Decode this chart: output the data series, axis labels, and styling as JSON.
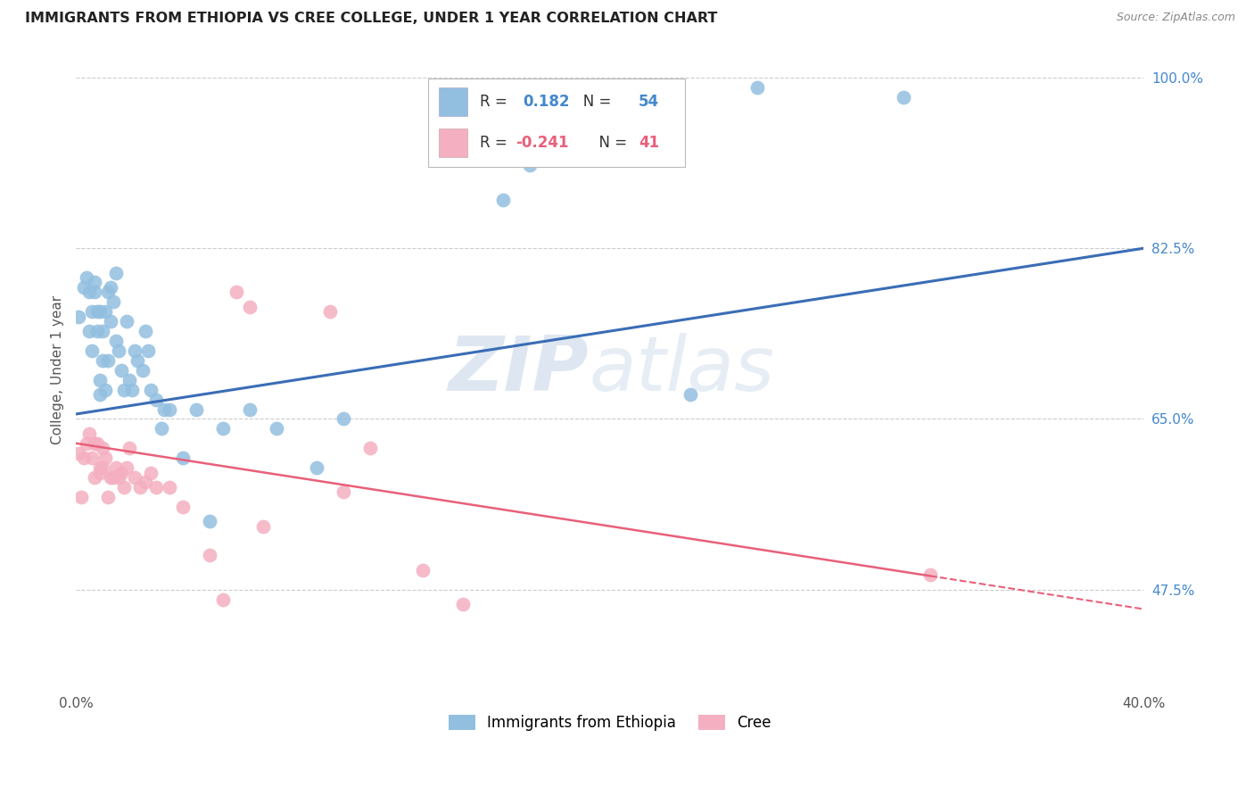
{
  "title": "IMMIGRANTS FROM ETHIOPIA VS CREE COLLEGE, UNDER 1 YEAR CORRELATION CHART",
  "source": "Source: ZipAtlas.com",
  "ylabel": "College, Under 1 year",
  "xlim": [
    0.0,
    0.4
  ],
  "ylim": [
    0.375,
    1.025
  ],
  "grid_color": "#cccccc",
  "background_color": "#ffffff",
  "watermark": "ZIPatlas",
  "legend_R1": "0.182",
  "legend_N1": "54",
  "legend_R2": "-0.241",
  "legend_N2": "41",
  "series1_color": "#92bfe0",
  "series2_color": "#f4afc0",
  "line1_color": "#3a6db5",
  "line2_color": "#e8607a",
  "blue_x": [
    0.001,
    0.003,
    0.004,
    0.005,
    0.005,
    0.006,
    0.006,
    0.007,
    0.007,
    0.008,
    0.008,
    0.009,
    0.009,
    0.009,
    0.01,
    0.01,
    0.011,
    0.011,
    0.012,
    0.012,
    0.013,
    0.013,
    0.014,
    0.015,
    0.015,
    0.016,
    0.017,
    0.018,
    0.019,
    0.02,
    0.021,
    0.022,
    0.023,
    0.025,
    0.026,
    0.027,
    0.028,
    0.03,
    0.032,
    0.033,
    0.035,
    0.04,
    0.045,
    0.05,
    0.055,
    0.065,
    0.075,
    0.09,
    0.1,
    0.16,
    0.17,
    0.23,
    0.255,
    0.31
  ],
  "blue_y": [
    0.755,
    0.785,
    0.795,
    0.74,
    0.78,
    0.72,
    0.76,
    0.79,
    0.78,
    0.74,
    0.76,
    0.69,
    0.675,
    0.76,
    0.71,
    0.74,
    0.68,
    0.76,
    0.71,
    0.78,
    0.75,
    0.785,
    0.77,
    0.73,
    0.8,
    0.72,
    0.7,
    0.68,
    0.75,
    0.69,
    0.68,
    0.72,
    0.71,
    0.7,
    0.74,
    0.72,
    0.68,
    0.67,
    0.64,
    0.66,
    0.66,
    0.61,
    0.66,
    0.545,
    0.64,
    0.66,
    0.64,
    0.6,
    0.65,
    0.875,
    0.91,
    0.675,
    0.99,
    0.98
  ],
  "pink_x": [
    0.001,
    0.002,
    0.003,
    0.004,
    0.005,
    0.006,
    0.007,
    0.007,
    0.008,
    0.009,
    0.009,
    0.01,
    0.01,
    0.011,
    0.012,
    0.013,
    0.014,
    0.015,
    0.016,
    0.017,
    0.018,
    0.019,
    0.02,
    0.022,
    0.024,
    0.026,
    0.028,
    0.03,
    0.035,
    0.04,
    0.05,
    0.055,
    0.06,
    0.065,
    0.07,
    0.095,
    0.1,
    0.11,
    0.13,
    0.145,
    0.32
  ],
  "pink_y": [
    0.615,
    0.57,
    0.61,
    0.625,
    0.635,
    0.61,
    0.625,
    0.59,
    0.625,
    0.6,
    0.595,
    0.62,
    0.6,
    0.61,
    0.57,
    0.59,
    0.59,
    0.6,
    0.59,
    0.595,
    0.58,
    0.6,
    0.62,
    0.59,
    0.58,
    0.585,
    0.595,
    0.58,
    0.58,
    0.56,
    0.51,
    0.465,
    0.78,
    0.765,
    0.54,
    0.76,
    0.575,
    0.62,
    0.495,
    0.46,
    0.49
  ],
  "ytick_positions": [
    0.475,
    0.65,
    0.825,
    1.0
  ],
  "ytick_labels": [
    "47.5%",
    "65.0%",
    "82.5%",
    "100.0%"
  ]
}
